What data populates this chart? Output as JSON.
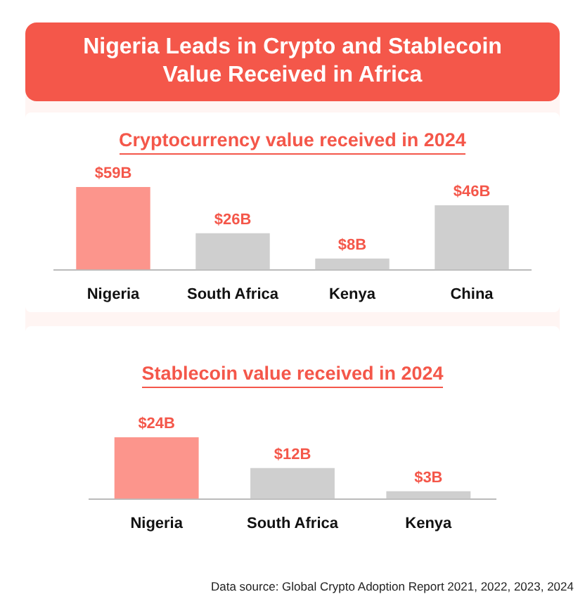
{
  "chart_data": [
    {
      "type": "bar",
      "title": "Nigeria Leads in Crypto and Stablecoin Value Received in Africa",
      "subtitle": "Cryptocurrency value received in 2024",
      "categories": [
        "Nigeria",
        "South Africa",
        "Kenya",
        "China"
      ],
      "values": [
        59,
        26,
        8,
        46
      ],
      "value_labels": [
        "$59B",
        "$26B",
        "$8B",
        "$46B"
      ],
      "colors": [
        "#fc958c",
        "#cfcfcf",
        "#cfcfcf",
        "#cfcfcf"
      ]
    },
    {
      "type": "bar",
      "title": "Stablecoin value received in 2024",
      "categories": [
        "Nigeria",
        "South Africa",
        "Kenya"
      ],
      "values": [
        24,
        12,
        3
      ],
      "value_labels": [
        "$24B",
        "$12B",
        "$3B"
      ],
      "colors": [
        "#fc958c",
        "#cfcfcf",
        "#cfcfcf"
      ],
      "annotations": [
        "Data source: Global Crypto Adoption Report  2021, 2022, 2023, 2024"
      ]
    }
  ]
}
